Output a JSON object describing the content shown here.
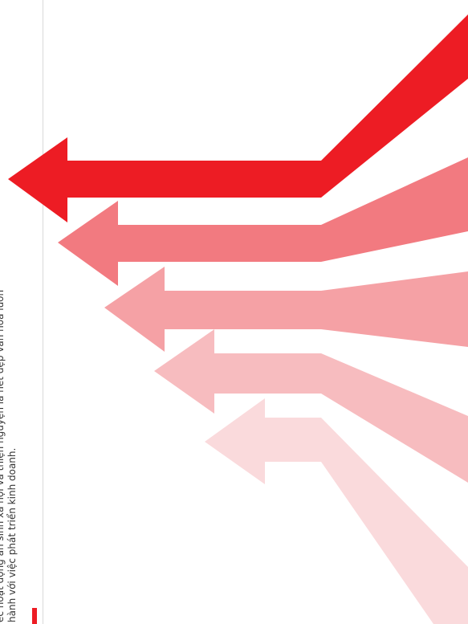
{
  "text": {
    "line1": "ec hoạt động an sinh xã hội và thiện nguyện là nét đẹp văn hóa luôn",
    "line2": "hành với việc phát triển kinh doanh."
  },
  "colors": {
    "accent": "#ED1C24",
    "arrow_shades": [
      "#ED1C24",
      "#F27A80",
      "#F5A1A5",
      "#F7BCBF",
      "#FADADC"
    ],
    "divider": "#D9D9D9",
    "text": "#333333"
  },
  "icons": [
    "arrow-left-icon"
  ]
}
